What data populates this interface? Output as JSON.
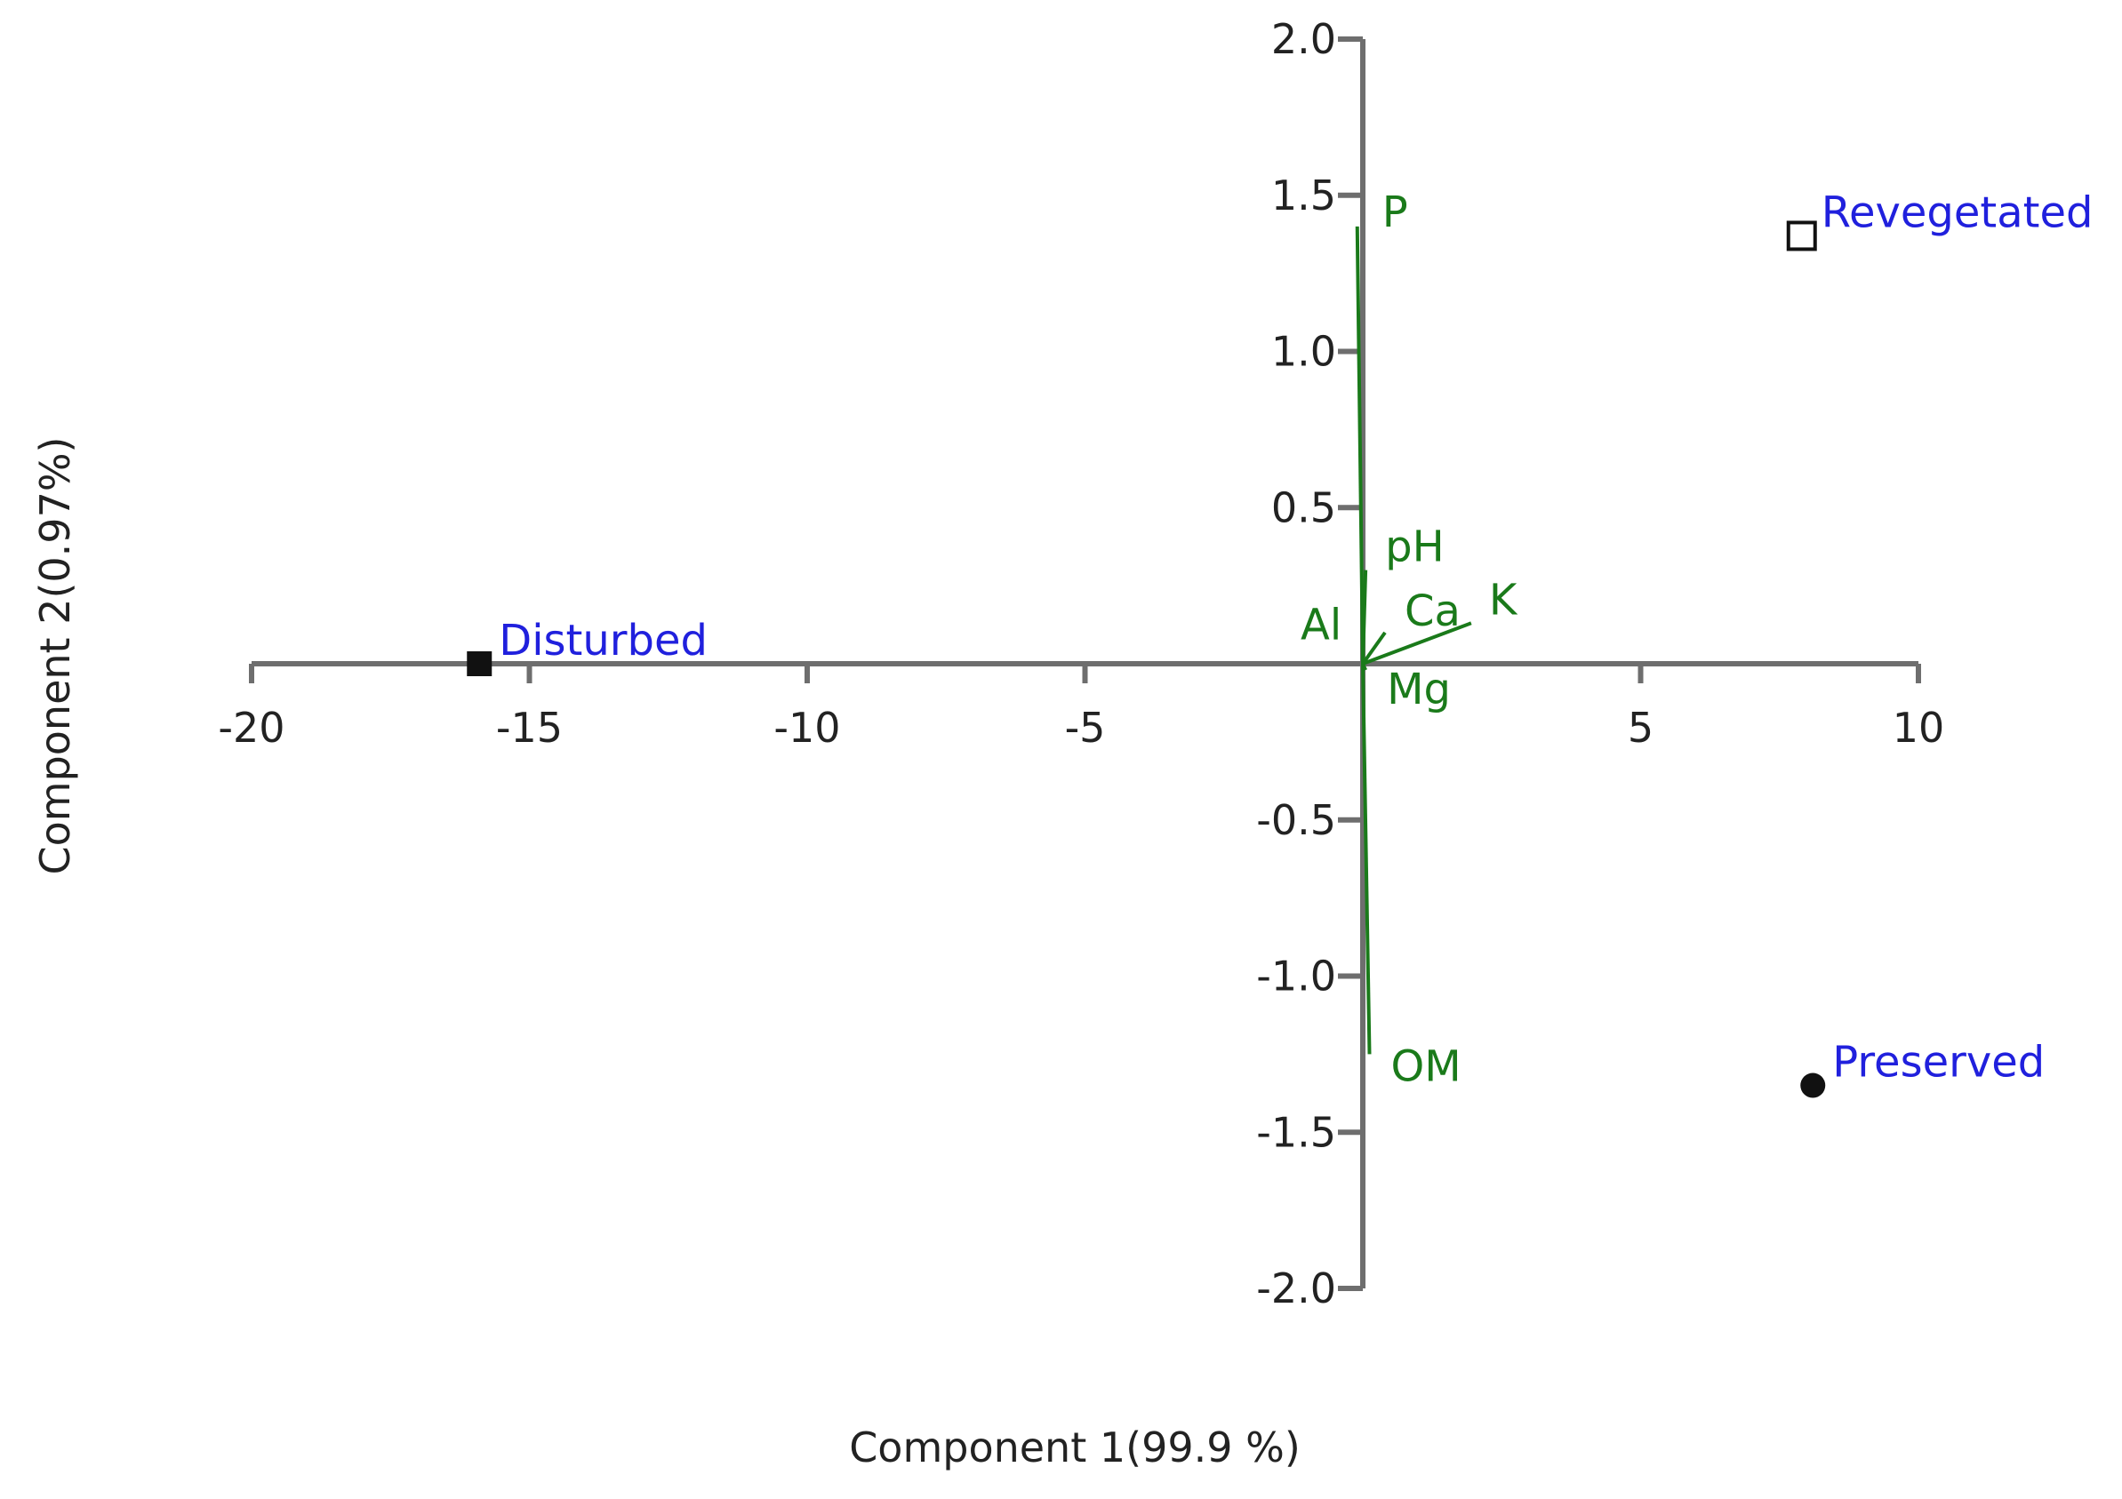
{
  "chart_data": {
    "type": "scatter",
    "subtype": "pca-biplot",
    "title": "",
    "xlabel": "Component 1(99.9 %)",
    "ylabel": "Component 2(0.97%)",
    "xlim": [
      -20,
      10
    ],
    "ylim": [
      -2.0,
      2.0
    ],
    "x_ticks": [
      -20,
      -15,
      -10,
      -5,
      5,
      10
    ],
    "x_tick_labels": [
      "-20",
      "-15",
      "-10",
      "-5",
      "5",
      "10"
    ],
    "y_ticks": [
      2.0,
      1.5,
      1.0,
      0.5,
      -0.5,
      -1.0,
      -1.5,
      -2.0
    ],
    "y_tick_labels": [
      "2.0",
      "1.5",
      "1.0",
      "0.5",
      "-0.5",
      "-1.0",
      "-1.5",
      "-2.0"
    ],
    "grid": false,
    "colors": {
      "axis": "#6e6e6e",
      "loading": "#1a7a1a",
      "observation_label": "#2020dd",
      "marker": "#111111"
    },
    "observations": [
      {
        "name": "Disturbed",
        "x": -15.9,
        "y": 0.0,
        "marker": "filled-square"
      },
      {
        "name": "Revegetated",
        "x": 7.9,
        "y": 1.37,
        "marker": "open-square"
      },
      {
        "name": "Preserved",
        "x": 8.1,
        "y": -1.35,
        "marker": "filled-circle"
      }
    ],
    "loadings": [
      {
        "name": "P",
        "x": -0.1,
        "y": 1.4
      },
      {
        "name": "pH",
        "x": 0.05,
        "y": 0.3
      },
      {
        "name": "Ca",
        "x": 0.4,
        "y": 0.1
      },
      {
        "name": "K",
        "x": 1.95,
        "y": 0.13
      },
      {
        "name": "Al",
        "x": 0.0,
        "y": 0.05
      },
      {
        "name": "Mg",
        "x": 0.05,
        "y": -0.02
      },
      {
        "name": "OM",
        "x": 0.12,
        "y": -1.25
      }
    ]
  }
}
